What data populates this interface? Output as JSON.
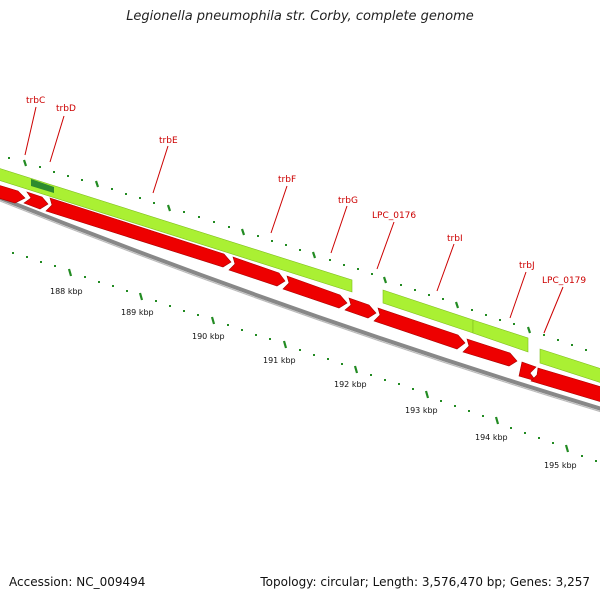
{
  "title": "Legionella pneumophila str. Corby, complete genome",
  "footer": {
    "accession": "Accession: NC_009494",
    "summary": "Topology: circular; Length: 3,576,470 bp; Genes: 3,257"
  },
  "colors": {
    "gene_label": "#cc0000",
    "label_line": "#cc0000",
    "reverse_gene": "#ee0000",
    "forward_track": "#aaf033",
    "forward_highlight": "#2e8b2e",
    "backbone": "#888888",
    "tick": "#228b22"
  },
  "gene_labels": [
    "trbC",
    "trbD",
    "trbE",
    "trbF",
    "trbG",
    "LPC_0176",
    "trbI",
    "trbJ",
    "LPC_0179"
  ],
  "scale_labels": [
    "188 kbp",
    "189 kbp",
    "190 kbp",
    "191 kbp",
    "192 kbp",
    "193 kbp",
    "194 kbp",
    "195 kbp"
  ]
}
